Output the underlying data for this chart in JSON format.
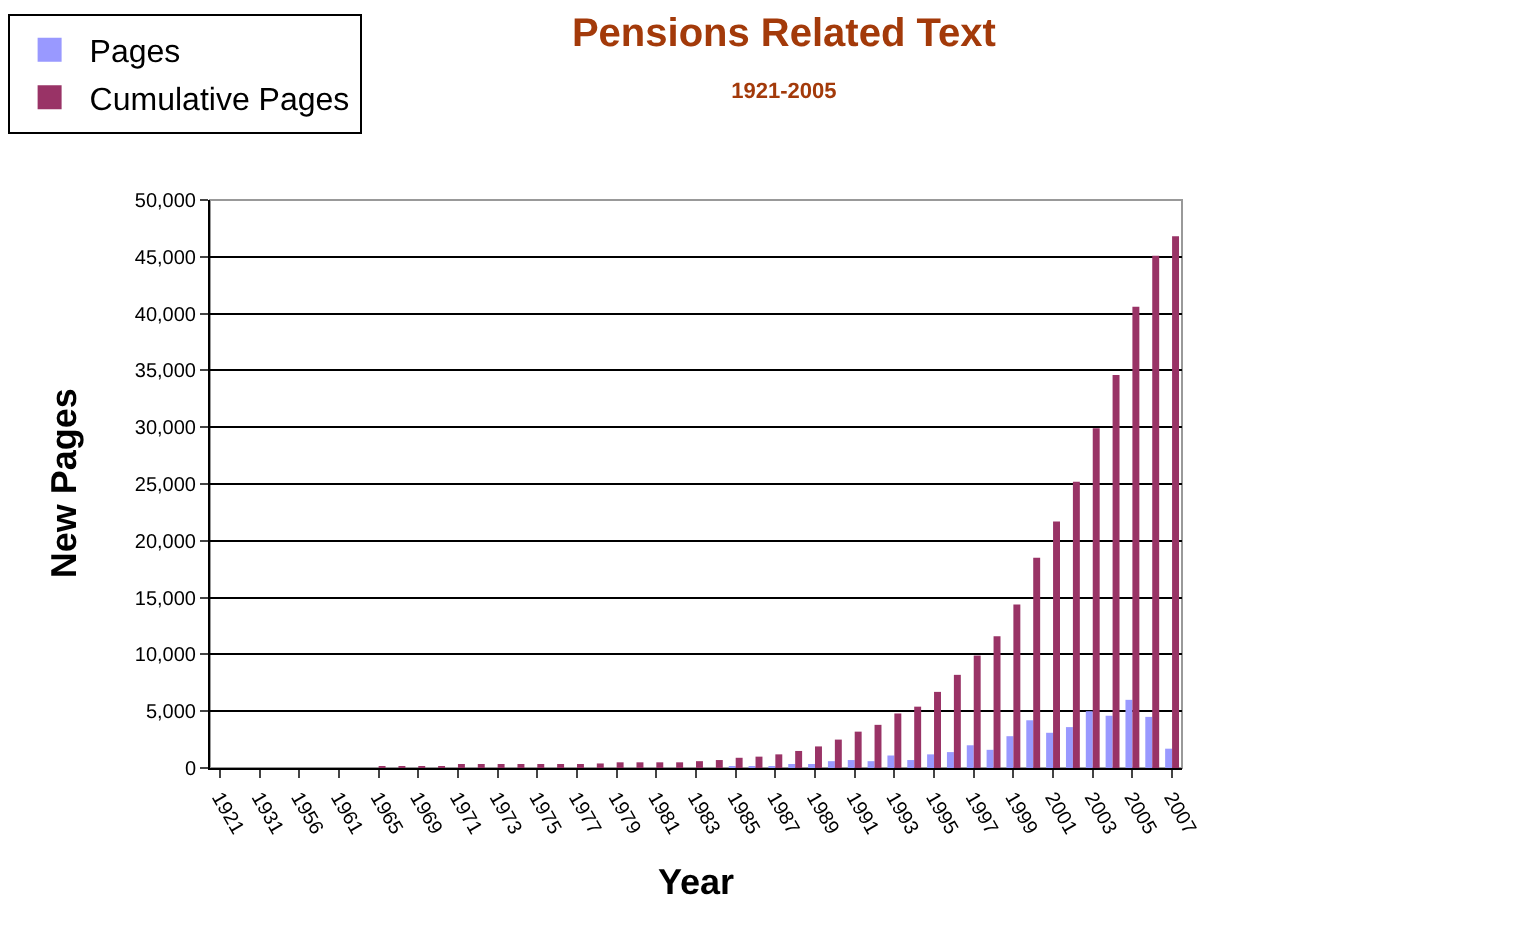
{
  "chart_data": {
    "type": "bar",
    "title": "Pensions Related Text",
    "subtitle": "1921-2005",
    "xlabel": "Year",
    "ylabel": "New Pages",
    "categories": [
      "1921",
      null,
      "1931",
      null,
      "1956",
      null,
      "1961",
      null,
      "1965",
      null,
      "1969",
      null,
      "1971",
      null,
      "1973",
      null,
      "1975",
      null,
      "1977",
      null,
      "1979",
      null,
      "1981",
      null,
      "1983",
      null,
      "1985",
      null,
      "1987",
      null,
      "1989",
      null,
      "1991",
      null,
      "1993",
      null,
      "1995",
      null,
      "1997",
      null,
      "1999",
      null,
      "2001",
      null,
      "2003",
      null,
      "2005",
      null,
      "2007"
    ],
    "series": [
      {
        "name": "Pages",
        "color": "#9999ff",
        "values": [
          0,
          0,
          0,
          0,
          0,
          0,
          0,
          0,
          0,
          0,
          0,
          0,
          0,
          0,
          0,
          0,
          0,
          0,
          0,
          0,
          0,
          0,
          0,
          0,
          0,
          0,
          100,
          100,
          100,
          300,
          200,
          600,
          700,
          600,
          1100,
          700,
          1200,
          1400,
          2000,
          1600,
          2800,
          4200,
          3100,
          3600,
          5000,
          4600,
          6000,
          4500,
          1700
        ]
      },
      {
        "name": "Cumulative Pages",
        "color": "#993366",
        "values": [
          0,
          0,
          0,
          0,
          0,
          0,
          0,
          0,
          100,
          100,
          100,
          100,
          200,
          200,
          300,
          300,
          300,
          300,
          300,
          400,
          500,
          500,
          500,
          500,
          600,
          700,
          900,
          1000,
          1200,
          1500,
          1900,
          2500,
          3200,
          3800,
          4800,
          5400,
          6700,
          8200,
          9900,
          11600,
          14400,
          18500,
          21700,
          25200,
          29900,
          34600,
          40600,
          45100,
          46800
        ]
      }
    ],
    "ylim": [
      0,
      50000
    ],
    "yticks": [
      {
        "value": 0,
        "label": "0"
      },
      {
        "value": 5000,
        "label": "5,000"
      },
      {
        "value": 10000,
        "label": "10,000"
      },
      {
        "value": 15000,
        "label": "15,000"
      },
      {
        "value": 20000,
        "label": "20,000"
      },
      {
        "value": 25000,
        "label": "25,000"
      },
      {
        "value": 30000,
        "label": "30,000"
      },
      {
        "value": 35000,
        "label": "35,000"
      },
      {
        "value": 40000,
        "label": "40,000"
      },
      {
        "value": 45000,
        "label": "45,000"
      },
      {
        "value": 50000,
        "label": "50,000"
      }
    ],
    "grid": "y",
    "legend": "top left"
  }
}
